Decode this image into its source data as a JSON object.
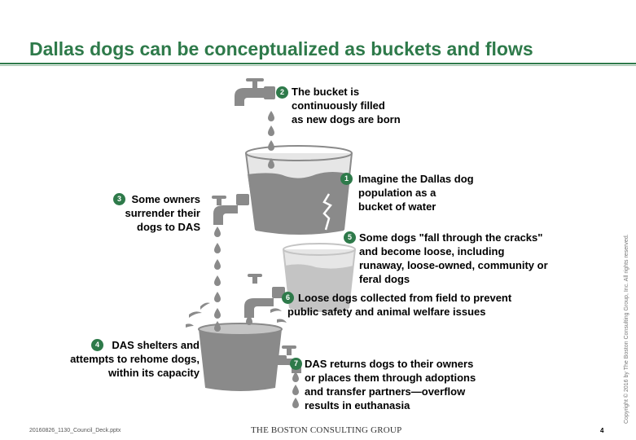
{
  "title": "Dallas dogs can be conceptualized as buckets and flows",
  "callouts": [
    {
      "num": "1",
      "lines": [
        "Imagine the Dallas dog",
        "population as a",
        "bucket of water"
      ]
    },
    {
      "num": "2",
      "lines": [
        "The bucket is",
        "continuously filled",
        "as new dogs are born"
      ]
    },
    {
      "num": "3",
      "lines": [
        "Some owners",
        "surrender their",
        "dogs to DAS"
      ]
    },
    {
      "num": "4",
      "lines": [
        "DAS shelters and",
        "attempts to rehome dogs,",
        "within its capacity"
      ]
    },
    {
      "num": "5",
      "lines": [
        "Some dogs \"fall through the cracks\"",
        "and become loose, including",
        "runaway, loose-owned, community or",
        "feral dogs"
      ]
    },
    {
      "num": "6",
      "lines": [
        "Loose dogs collected from field to prevent",
        "public safety and animal welfare issues"
      ]
    },
    {
      "num": "7",
      "lines": [
        "DAS returns dogs to their owners",
        "or places them through adoptions",
        "and transfer partners—overflow",
        "results in euthanasia"
      ]
    }
  ],
  "footer": {
    "file": "20160826_1130_Council_Deck.pptx",
    "company": "THE BOSTON CONSULTING GROUP",
    "page": "4",
    "copyright": "Copyright © 2016 by The Boston Consulting Group, Inc. All rights reserved."
  },
  "colors": {
    "accent": "#2e7a4a",
    "art": "#8a8a8a",
    "art_light": "#c4c4c4"
  },
  "icons": [
    "faucet-icon",
    "bucket-icon",
    "water-drop-icon",
    "splash-icon",
    "crack-icon"
  ]
}
